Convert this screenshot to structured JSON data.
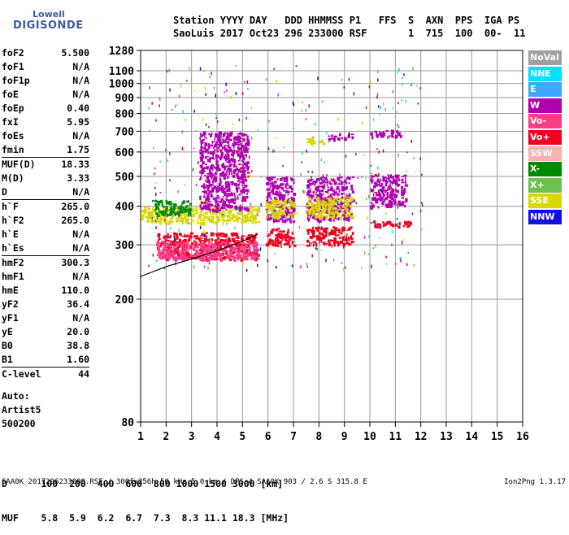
{
  "logo": {
    "line1": "Lowell",
    "line2": "DIGISONDE"
  },
  "header": {
    "row1": "Station YYYY DAY   DDD HHMMSS P1   FFS  S  AXN  PPS  IGA PS",
    "row2": "SaoLuis 2017 Oct23 296 233000 RSF       1  715  100  00-  11"
  },
  "params": [
    {
      "label": "foF2",
      "value": "5.500"
    },
    {
      "label": "foF1",
      "value": "N/A"
    },
    {
      "label": "foF1p",
      "value": "N/A"
    },
    {
      "label": "foE",
      "value": "N/A"
    },
    {
      "label": "foEp",
      "value": "0.40"
    },
    {
      "label": "fxI",
      "value": "5.95"
    },
    {
      "label": "foEs",
      "value": "N/A"
    },
    {
      "label": "fmin",
      "value": "1.75"
    },
    {
      "label": "MUF(D)",
      "value": "18.33"
    },
    {
      "label": "M(D)",
      "value": "3.33"
    },
    {
      "label": "D",
      "value": "N/A"
    },
    {
      "label": "h`F",
      "value": "265.0"
    },
    {
      "label": "h`F2",
      "value": "265.0"
    },
    {
      "label": "h`E",
      "value": "N/A"
    },
    {
      "label": "h`Es",
      "value": "N/A"
    },
    {
      "label": "hmF2",
      "value": "300.3"
    },
    {
      "label": "hmF1",
      "value": "N/A"
    },
    {
      "label": "hmE",
      "value": "110.0"
    },
    {
      "label": "yF2",
      "value": "36.4"
    },
    {
      "label": "yF1",
      "value": "N/A"
    },
    {
      "label": "yE",
      "value": "20.0"
    },
    {
      "label": "B0",
      "value": "38.8"
    },
    {
      "label": "B1",
      "value": "1.60"
    },
    {
      "label": "C-level",
      "value": "44"
    }
  ],
  "auto": {
    "line1": "Auto:",
    "line2": "Artist5",
    "line3": "500200"
  },
  "legend": [
    {
      "label": "NoVal",
      "bg": "#a0a0a0",
      "fg": "#ffffff"
    },
    {
      "label": "NNE",
      "bg": "#00e0ff",
      "fg": "#ffffff"
    },
    {
      "label": "E",
      "bg": "#3ea8ff",
      "fg": "#ffffff"
    },
    {
      "label": "W",
      "bg": "#b000b0",
      "fg": "#ffffff"
    },
    {
      "label": "Vo-",
      "bg": "#ff3c8c",
      "fg": "#ffffff"
    },
    {
      "label": "Vo+",
      "bg": "#ee0020",
      "fg": "#ffffff"
    },
    {
      "label": "SSW",
      "bg": "#ffb0b0",
      "fg": "#ffffff"
    },
    {
      "label": "X-",
      "bg": "#008a00",
      "fg": "#ffffff"
    },
    {
      "label": "X+",
      "bg": "#70c050",
      "fg": "#ffffff"
    },
    {
      "label": "SSE",
      "bg": "#d8d800",
      "fg": "#ffffff"
    },
    {
      "label": "NNW",
      "bg": "#1010e0",
      "fg": "#ffffff"
    }
  ],
  "chart_data": {
    "type": "scatter",
    "title": "",
    "xlabel": "",
    "ylabel": "",
    "xlim": [
      1,
      16
    ],
    "ylim": [
      80,
      1280
    ],
    "y_scale": "log",
    "x_ticks": [
      "1",
      "2",
      "3",
      "4",
      "5",
      "6",
      "7",
      "8",
      "9",
      "10",
      "11",
      "12",
      "13",
      "14",
      "15",
      "16"
    ],
    "y_ticks": [
      {
        "v": 1280,
        "label": "1280"
      },
      {
        "v": 1100,
        "label": "1100"
      },
      {
        "v": 1000,
        "label": "1000"
      },
      {
        "v": 900,
        "label": "900"
      },
      {
        "v": 800,
        "label": "800"
      },
      {
        "v": 700,
        "label": "700"
      },
      {
        "v": 600,
        "label": "600"
      },
      {
        "v": 500,
        "label": "500"
      },
      {
        "v": 400,
        "label": "400"
      },
      {
        "v": 300,
        "label": "300"
      },
      {
        "v": 200,
        "label": "200"
      },
      {
        "v": 80,
        "label": "80"
      }
    ],
    "grid": true,
    "echo_regions": [
      {
        "x": [
          1.6,
          5.6
        ],
        "y": [
          270,
          330
        ],
        "color": "#ee0020"
      },
      {
        "x": [
          1.6,
          5.6
        ],
        "y": [
          270,
          310
        ],
        "color": "#ff3c8c"
      },
      {
        "x": [
          1.0,
          5.6
        ],
        "y": [
          355,
          400
        ],
        "color": "#d8d800"
      },
      {
        "x": [
          1.5,
          3.0
        ],
        "y": [
          375,
          420
        ],
        "color": "#008a00"
      },
      {
        "x": [
          3.3,
          5.2
        ],
        "y": [
          390,
          700
        ],
        "color": "#b000b0"
      },
      {
        "x": [
          5.9,
          7.0
        ],
        "y": [
          300,
          340
        ],
        "color": "#ee0020"
      },
      {
        "x": [
          5.9,
          7.0
        ],
        "y": [
          360,
          500
        ],
        "color": "#b000b0"
      },
      {
        "x": [
          5.9,
          7.0
        ],
        "y": [
          370,
          420
        ],
        "color": "#d8d800"
      },
      {
        "x": [
          7.5,
          9.3
        ],
        "y": [
          300,
          345
        ],
        "color": "#ee0020"
      },
      {
        "x": [
          7.5,
          9.3
        ],
        "y": [
          360,
          500
        ],
        "color": "#b000b0"
      },
      {
        "x": [
          7.5,
          9.3
        ],
        "y": [
          370,
          430
        ],
        "color": "#d8d800"
      },
      {
        "x": [
          7.5,
          8.2
        ],
        "y": [
          640,
          675
        ],
        "color": "#d8d800"
      },
      {
        "x": [
          8.3,
          9.3
        ],
        "y": [
          660,
          690
        ],
        "color": "#b000b0"
      },
      {
        "x": [
          10.0,
          11.4
        ],
        "y": [
          400,
          510
        ],
        "color": "#b000b0"
      },
      {
        "x": [
          10.0,
          11.6
        ],
        "y": [
          345,
          360
        ],
        "color": "#ee0020"
      },
      {
        "x": [
          10.0,
          11.2
        ],
        "y": [
          675,
          710
        ],
        "color": "#b000b0"
      }
    ],
    "curve": {
      "x": [
        1.0,
        2.0,
        3.0,
        4.0,
        5.0,
        5.6
      ],
      "y": [
        237,
        255,
        270,
        287,
        308,
        325
      ]
    }
  },
  "distance_row": {
    "label": "D",
    "values": [
      "100",
      "200",
      "400",
      "600",
      "800",
      "1000",
      "1500",
      "3000"
    ],
    "unit": "[km]"
  },
  "muf_row": {
    "label": "MUF",
    "values": [
      "5.8",
      "5.9",
      "6.2",
      "6.7",
      "7.3",
      "8.3",
      "11.1",
      "18.3"
    ],
    "unit": "[MHz]"
  },
  "footer": {
    "left": "SAA0K_2017296233000.RSF / 300fx256h 50 kHz 5.0 km / DPS-4 SAA0K 903 / 2.6 S 315.8 E",
    "right": "Ion2Png 1.3.17"
  }
}
